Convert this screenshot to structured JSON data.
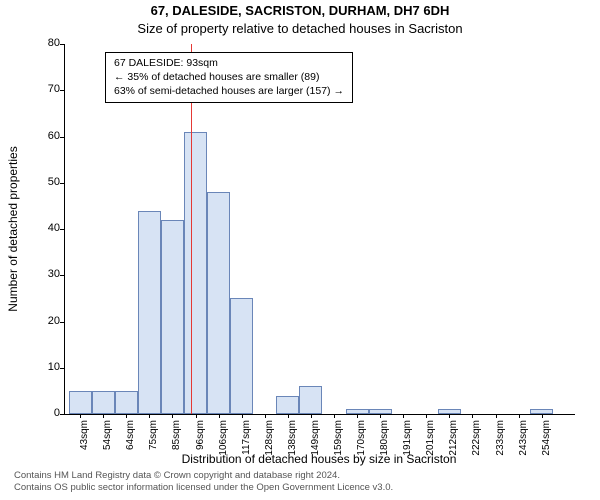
{
  "title_main": "67, DALESIDE, SACRISTON, DURHAM, DH7 6DH",
  "title_sub": "Size of property relative to detached houses in Sacriston",
  "y_axis_label": "Number of detached properties",
  "x_axis_label": "Distribution of detached houses by size in Sacriston",
  "footer_line1": "Contains HM Land Registry data © Crown copyright and database right 2024.",
  "footer_line2": "Contains OS public sector information licensed under the Open Government Licence v3.0.",
  "chart": {
    "type": "histogram",
    "ylim": [
      0,
      80
    ],
    "ytick_step": 10,
    "bar_fill": "#d7e3f4",
    "bar_border": "#6a86b8",
    "axis_color": "#000000",
    "refline_color": "#e53935",
    "background_color": "#ffffff",
    "refline_value": 93,
    "x_range": [
      38,
      259
    ],
    "bar_width_sqm": 10,
    "bars": [
      {
        "x": 40,
        "label": "43sqm",
        "value": 5
      },
      {
        "x": 50,
        "label": "54sqm",
        "value": 5
      },
      {
        "x": 60,
        "label": "64sqm",
        "value": 5
      },
      {
        "x": 70,
        "label": "75sqm",
        "value": 44
      },
      {
        "x": 80,
        "label": "85sqm",
        "value": 42
      },
      {
        "x": 90,
        "label": "96sqm",
        "value": 61
      },
      {
        "x": 100,
        "label": "106sqm",
        "value": 48
      },
      {
        "x": 110,
        "label": "117sqm",
        "value": 25
      },
      {
        "x": 120,
        "label": "128sqm",
        "value": 0
      },
      {
        "x": 130,
        "label": "138sqm",
        "value": 4
      },
      {
        "x": 140,
        "label": "149sqm",
        "value": 6
      },
      {
        "x": 150,
        "label": "159sqm",
        "value": 0
      },
      {
        "x": 160,
        "label": "170sqm",
        "value": 1
      },
      {
        "x": 170,
        "label": "180sqm",
        "value": 1
      },
      {
        "x": 180,
        "label": "191sqm",
        "value": 0
      },
      {
        "x": 190,
        "label": "201sqm",
        "value": 0
      },
      {
        "x": 200,
        "label": "212sqm",
        "value": 1
      },
      {
        "x": 210,
        "label": "222sqm",
        "value": 0
      },
      {
        "x": 220,
        "label": "233sqm",
        "value": 0
      },
      {
        "x": 230,
        "label": "243sqm",
        "value": 0
      },
      {
        "x": 240,
        "label": "254sqm",
        "value": 1
      }
    ]
  },
  "annotation": {
    "line1": "67 DALESIDE: 93sqm",
    "line2": "← 35% of detached houses are smaller (89)",
    "line3": "63% of semi-detached houses are larger (157) →"
  }
}
